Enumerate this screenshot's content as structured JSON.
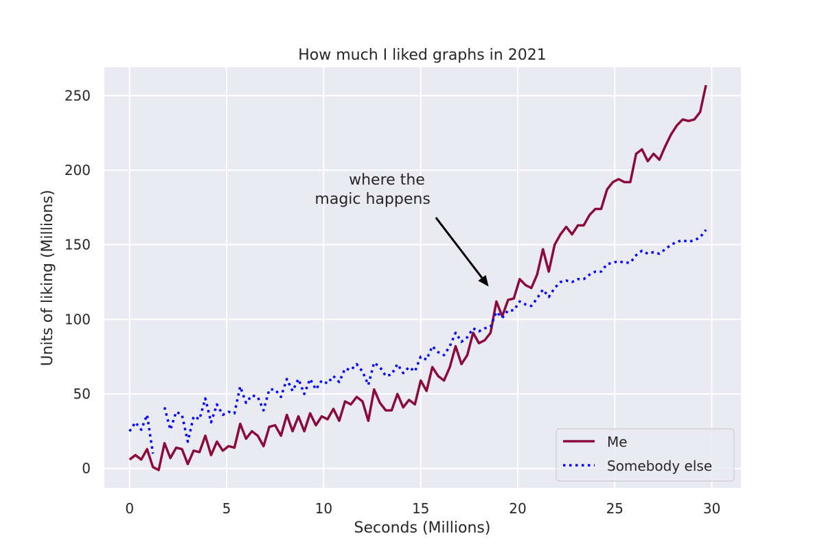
{
  "chart_data": {
    "type": "line",
    "title": "How much I liked graphs in 2021",
    "xlabel": "Seconds (Millions)",
    "ylabel": "Units of liking (Millions)",
    "xlim": [
      -1.3,
      31.5
    ],
    "ylim": [
      -13,
      269
    ],
    "xticks": [
      0,
      5,
      10,
      15,
      20,
      25,
      30
    ],
    "yticks": [
      0,
      50,
      100,
      150,
      200,
      250
    ],
    "grid": true,
    "background": "#eaeaf2",
    "legend_position": "bottom-right",
    "annotation": {
      "text_lines": [
        "where the",
        "magic happens"
      ],
      "xy": [
        18.5,
        122
      ],
      "xytext": [
        15.5,
        171
      ]
    },
    "series": [
      {
        "name": "Me",
        "color": "#8b0a3c",
        "style": "solid",
        "points": [
          [
            0.0,
            6
          ],
          [
            0.3,
            9
          ],
          [
            0.6,
            6
          ],
          [
            0.9,
            13
          ],
          [
            1.2,
            1
          ],
          [
            1.5,
            -1
          ],
          [
            1.8,
            17
          ],
          [
            2.1,
            7
          ],
          [
            2.4,
            14
          ],
          [
            2.7,
            13
          ],
          [
            3.0,
            3
          ],
          [
            3.3,
            12
          ],
          [
            3.6,
            11
          ],
          [
            3.9,
            22
          ],
          [
            4.2,
            9
          ],
          [
            4.5,
            18
          ],
          [
            4.8,
            12
          ],
          [
            5.1,
            15
          ],
          [
            5.4,
            14
          ],
          [
            5.7,
            30
          ],
          [
            6.0,
            20
          ],
          [
            6.3,
            25
          ],
          [
            6.6,
            22
          ],
          [
            6.9,
            15
          ],
          [
            7.2,
            28
          ],
          [
            7.5,
            29
          ],
          [
            7.8,
            22
          ],
          [
            8.1,
            36
          ],
          [
            8.4,
            25
          ],
          [
            8.7,
            35
          ],
          [
            9.0,
            25
          ],
          [
            9.3,
            37
          ],
          [
            9.6,
            29
          ],
          [
            9.9,
            35
          ],
          [
            10.2,
            33
          ],
          [
            10.5,
            40
          ],
          [
            10.8,
            32
          ],
          [
            11.1,
            45
          ],
          [
            11.4,
            43
          ],
          [
            11.7,
            48
          ],
          [
            12.0,
            45
          ],
          [
            12.3,
            32
          ],
          [
            12.6,
            53
          ],
          [
            12.9,
            44
          ],
          [
            13.2,
            39
          ],
          [
            13.5,
            39
          ],
          [
            13.8,
            50
          ],
          [
            14.1,
            41
          ],
          [
            14.4,
            46
          ],
          [
            14.7,
            43
          ],
          [
            15.0,
            59
          ],
          [
            15.3,
            52
          ],
          [
            15.6,
            68
          ],
          [
            15.9,
            62
          ],
          [
            16.2,
            59
          ],
          [
            16.5,
            68
          ],
          [
            16.8,
            82
          ],
          [
            17.1,
            70
          ],
          [
            17.4,
            76
          ],
          [
            17.7,
            91
          ],
          [
            18.0,
            84
          ],
          [
            18.3,
            86
          ],
          [
            18.6,
            91
          ],
          [
            18.9,
            112
          ],
          [
            19.2,
            102
          ],
          [
            19.5,
            113
          ],
          [
            19.8,
            114
          ],
          [
            20.1,
            127
          ],
          [
            20.4,
            123
          ],
          [
            20.7,
            121
          ],
          [
            21.0,
            130
          ],
          [
            21.3,
            147
          ],
          [
            21.6,
            132
          ],
          [
            21.9,
            150
          ],
          [
            22.2,
            157
          ],
          [
            22.5,
            162
          ],
          [
            22.8,
            157
          ],
          [
            23.1,
            163
          ],
          [
            23.4,
            163
          ],
          [
            23.7,
            170
          ],
          [
            24.0,
            174
          ],
          [
            24.3,
            174
          ],
          [
            24.6,
            187
          ],
          [
            24.9,
            192
          ],
          [
            25.2,
            194
          ],
          [
            25.5,
            192
          ],
          [
            25.8,
            192
          ],
          [
            26.1,
            211
          ],
          [
            26.4,
            214
          ],
          [
            26.7,
            206
          ],
          [
            27.0,
            211
          ],
          [
            27.3,
            207
          ],
          [
            27.6,
            216
          ],
          [
            27.9,
            224
          ],
          [
            28.2,
            230
          ],
          [
            28.5,
            234
          ],
          [
            28.8,
            233
          ],
          [
            29.1,
            234
          ],
          [
            29.4,
            239
          ],
          [
            29.7,
            257
          ]
        ]
      },
      {
        "name": "Somebody else",
        "color": "#0000ff",
        "style": "dotted",
        "points": [
          [
            0.0,
            25
          ],
          [
            0.3,
            31
          ],
          [
            0.6,
            26
          ],
          [
            0.9,
            36
          ],
          [
            1.2,
            10
          ],
          [
            1.5,
            null
          ],
          [
            1.8,
            41
          ],
          [
            2.1,
            26
          ],
          [
            2.4,
            38
          ],
          [
            2.7,
            36
          ],
          [
            3.0,
            18
          ],
          [
            3.3,
            35
          ],
          [
            3.6,
            33
          ],
          [
            3.9,
            47
          ],
          [
            4.2,
            31
          ],
          [
            4.5,
            43
          ],
          [
            4.8,
            36
          ],
          [
            5.1,
            38
          ],
          [
            5.4,
            37
          ],
          [
            5.7,
            55
          ],
          [
            6.0,
            44
          ],
          [
            6.3,
            49
          ],
          [
            6.6,
            48
          ],
          [
            6.9,
            39
          ],
          [
            7.2,
            53
          ],
          [
            7.5,
            53
          ],
          [
            7.8,
            48
          ],
          [
            8.1,
            60
          ],
          [
            8.4,
            52
          ],
          [
            8.7,
            60
          ],
          [
            9.0,
            50
          ],
          [
            9.3,
            60
          ],
          [
            9.6,
            53
          ],
          [
            9.9,
            59
          ],
          [
            10.2,
            57
          ],
          [
            10.5,
            62
          ],
          [
            10.8,
            58
          ],
          [
            11.1,
            67
          ],
          [
            11.4,
            66
          ],
          [
            11.7,
            70
          ],
          [
            12.0,
            65
          ],
          [
            12.3,
            56
          ],
          [
            12.6,
            71
          ],
          [
            12.9,
            68
          ],
          [
            13.2,
            62
          ],
          [
            13.5,
            63
          ],
          [
            13.8,
            70
          ],
          [
            14.1,
            64
          ],
          [
            14.4,
            68
          ],
          [
            14.7,
            65
          ],
          [
            15.0,
            75
          ],
          [
            15.3,
            73
          ],
          [
            15.6,
            82
          ],
          [
            15.9,
            78
          ],
          [
            16.2,
            76
          ],
          [
            16.5,
            82
          ],
          [
            16.8,
            91
          ],
          [
            17.1,
            85
          ],
          [
            17.4,
            88
          ],
          [
            17.7,
            94
          ],
          [
            18.0,
            92
          ],
          [
            18.3,
            94
          ],
          [
            18.6,
            95
          ],
          [
            18.9,
            105
          ],
          [
            19.2,
            101
          ],
          [
            19.5,
            106
          ],
          [
            19.8,
            106
          ],
          [
            20.1,
            112
          ],
          [
            20.4,
            110
          ],
          [
            20.7,
            109
          ],
          [
            21.0,
            114
          ],
          [
            21.3,
            120
          ],
          [
            21.6,
            115
          ],
          [
            21.9,
            121
          ],
          [
            22.2,
            125
          ],
          [
            22.5,
            126
          ],
          [
            22.8,
            125
          ],
          [
            23.1,
            127
          ],
          [
            23.4,
            127
          ],
          [
            23.7,
            130
          ],
          [
            24.0,
            132
          ],
          [
            24.3,
            132
          ],
          [
            24.6,
            137
          ],
          [
            24.9,
            138
          ],
          [
            25.2,
            139
          ],
          [
            25.5,
            138
          ],
          [
            25.8,
            138
          ],
          [
            26.1,
            143
          ],
          [
            26.4,
            146
          ],
          [
            26.7,
            144
          ],
          [
            27.0,
            145
          ],
          [
            27.3,
            144
          ],
          [
            27.6,
            147
          ],
          [
            27.9,
            150
          ],
          [
            28.2,
            152
          ],
          [
            28.5,
            153
          ],
          [
            28.8,
            152
          ],
          [
            29.1,
            153
          ],
          [
            29.4,
            155
          ],
          [
            29.7,
            160
          ]
        ]
      }
    ]
  }
}
